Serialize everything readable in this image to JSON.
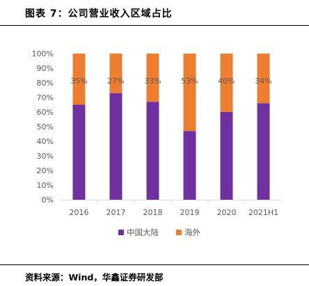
{
  "header": {
    "title": "图表 7：公司营业收入区域占比"
  },
  "footer": {
    "source": "资料来源：Wind，华鑫证券研发部"
  },
  "chart_data": {
    "type": "bar",
    "stacked": true,
    "categories": [
      "2016",
      "2017",
      "2018",
      "2019",
      "2020",
      "2021H1"
    ],
    "series": [
      {
        "name": "中国大陆",
        "color": "#7030A0",
        "values": [
          65,
          73,
          67,
          47,
          60,
          66
        ]
      },
      {
        "name": "海外",
        "color": "#ED7D31",
        "values": [
          35,
          27,
          33,
          53,
          40,
          34
        ]
      }
    ],
    "data_labels": [
      "35%",
      "27%",
      "33%",
      "53%",
      "40%",
      "34%"
    ],
    "yticks": [
      "0%",
      "10%",
      "20%",
      "30%",
      "40%",
      "50%",
      "60%",
      "70%",
      "80%",
      "90%",
      "100%"
    ],
    "ylim": [
      0,
      100
    ],
    "grid": false,
    "legend_position": "bottom"
  }
}
